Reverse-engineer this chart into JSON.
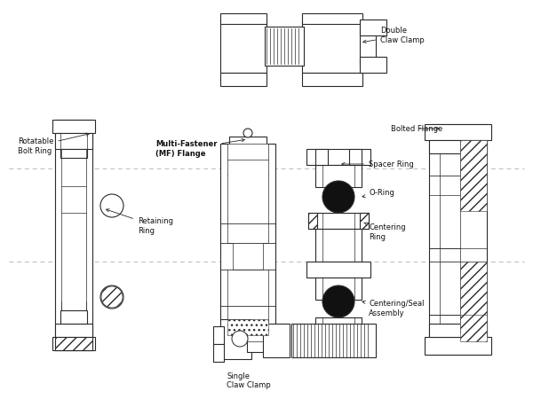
{
  "bg_color": "#ffffff",
  "lc": "#2a2a2a",
  "dash_color": "#aaaaaa",
  "dark_fill": "#111111",
  "annotations": {
    "double_claw_clamp": "Double\nClaw Clamp",
    "rotatable_bolt_ring": "Rotatable\nBolt Ring",
    "multi_fastener": "Multi-Fastener\n(MF) Flange",
    "retaining_ring": "Retaining\nRing",
    "spacer_ring": "Spacer Ring",
    "o_ring": "O-Ring",
    "centering_ring": "Centering\nRing",
    "bolted_flange": "Bolted Flange",
    "centering_seal": "Centering/Seal\nAssembly",
    "single_claw_clamp": "Single\nClaw Clamp"
  }
}
